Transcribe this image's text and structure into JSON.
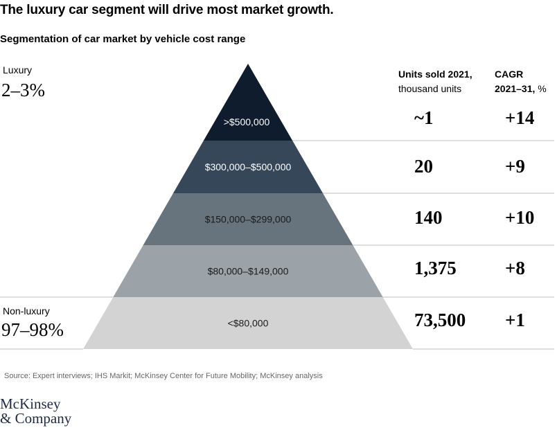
{
  "title": "The luxury car segment will drive most market growth.",
  "subtitle": "Segmentation of car market by vehicle cost range",
  "groups": {
    "luxury": {
      "label": "Luxury",
      "share": "2–3%"
    },
    "non_luxury": {
      "label": "Non-luxury",
      "share": "97–98%"
    }
  },
  "columns": {
    "units": {
      "bold": "Units sold 2021,",
      "normal": "thousand units"
    },
    "cagr": {
      "bold": "CAGR",
      "bold2": "2021–31,",
      "normal": " %"
    }
  },
  "chart_data": {
    "type": "table",
    "title": "Segmentation of car market by vehicle cost range",
    "categories": [
      ">$500,000",
      "$300,000–$500,000",
      "$150,000–$299,000",
      "$80,000–$149,000",
      "<$80,000"
    ],
    "series": [
      {
        "name": "Units sold 2021, thousand units",
        "values": [
          "~1",
          "20",
          "140",
          "1,375",
          "73,500"
        ]
      },
      {
        "name": "CAGR 2021–31, %",
        "values": [
          "+14",
          "+9",
          "+10",
          "+8",
          "+1"
        ]
      }
    ],
    "colors": [
      "#0f1c2e",
      "#37475a",
      "#67737d",
      "#9ca3a8",
      "#d3d3d3"
    ],
    "label_colors": [
      "#ffffff",
      "#ffffff",
      "#1a1a1a",
      "#1a1a1a",
      "#1a1a1a"
    ]
  },
  "source": "Source: Expert interviews; IHS Markit; McKinsey Center for Future Mobility; McKinsey analysis",
  "logo": {
    "line1": "McKinsey",
    "line2": "& Company"
  }
}
